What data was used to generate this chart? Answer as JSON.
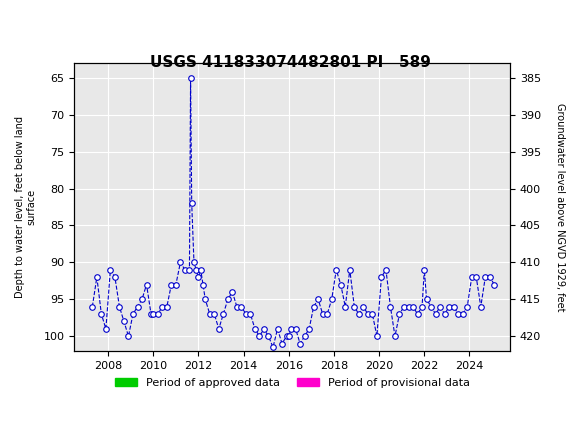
{
  "title": "USGS 411833074482801 PI   589",
  "ylabel_left": "Depth to water level, feet below land\nsurface",
  "ylabel_right": "Groundwater level above NGVD 1929, feet",
  "xlabel": "",
  "ylim_left": [
    63,
    102
  ],
  "ylim_right": [
    383,
    422
  ],
  "xlim": [
    2006.5,
    2025.8
  ],
  "xticks": [
    2008,
    2010,
    2012,
    2014,
    2016,
    2018,
    2020,
    2022,
    2024
  ],
  "yticks_left": [
    65,
    70,
    75,
    80,
    85,
    90,
    95,
    100
  ],
  "yticks_right": [
    420,
    415,
    410,
    405,
    400,
    395,
    390,
    385
  ],
  "header_color": "#1a6b3c",
  "line_color": "#0000cc",
  "marker_color": "#0000cc",
  "approved_color": "#00cc00",
  "provisional_color": "#ff00cc",
  "background_color": "#ffffff",
  "legend_approved": "Period of approved data",
  "legend_provisional": "Period of provisional data",
  "data_x": [
    2007.3,
    2007.5,
    2007.7,
    2007.9,
    2008.1,
    2008.3,
    2008.5,
    2008.7,
    2008.9,
    2009.1,
    2009.3,
    2009.5,
    2009.7,
    2009.9,
    2010.0,
    2010.2,
    2010.4,
    2010.6,
    2010.8,
    2011.0,
    2011.2,
    2011.4,
    2011.6,
    2011.65,
    2011.7,
    2011.8,
    2011.9,
    2012.0,
    2012.1,
    2012.2,
    2012.3,
    2012.5,
    2012.7,
    2012.9,
    2013.1,
    2013.3,
    2013.5,
    2013.7,
    2013.9,
    2014.1,
    2014.3,
    2014.5,
    2014.7,
    2014.9,
    2015.1,
    2015.3,
    2015.5,
    2015.7,
    2015.9,
    2016.0,
    2016.1,
    2016.3,
    2016.5,
    2016.7,
    2016.9,
    2017.1,
    2017.3,
    2017.5,
    2017.7,
    2017.9,
    2018.1,
    2018.3,
    2018.5,
    2018.7,
    2018.9,
    2019.1,
    2019.3,
    2019.5,
    2019.7,
    2019.9,
    2020.1,
    2020.3,
    2020.5,
    2020.7,
    2020.9,
    2021.1,
    2021.3,
    2021.5,
    2021.7,
    2021.9,
    2022.0,
    2022.1,
    2022.3,
    2022.5,
    2022.7,
    2022.9,
    2023.1,
    2023.3,
    2023.5,
    2023.7,
    2023.9,
    2024.1,
    2024.3,
    2024.5,
    2024.7,
    2024.9,
    2025.1
  ],
  "data_y": [
    96,
    92,
    97,
    99,
    91,
    92,
    96,
    98,
    100,
    97,
    96,
    95,
    93,
    97,
    97,
    97,
    96,
    96,
    93,
    93,
    90,
    91,
    91,
    65,
    82,
    90,
    91,
    92,
    91,
    93,
    95,
    97,
    97,
    99,
    97,
    95,
    94,
    96,
    96,
    97,
    97,
    99,
    100,
    99,
    100,
    101.5,
    99,
    101,
    100,
    100,
    99,
    99,
    101,
    100,
    99,
    96,
    95,
    97,
    97,
    95,
    91,
    93,
    96,
    91,
    96,
    97,
    96,
    97,
    97,
    100,
    92,
    91,
    96,
    100,
    97,
    96,
    96,
    96,
    97,
    96,
    91,
    95,
    96,
    97,
    96,
    97,
    96,
    96,
    97,
    97,
    96,
    92,
    92,
    96,
    92,
    92,
    93
  ],
  "approved_bar_start": 2006.7,
  "approved_bar_end": 2024.6,
  "provisional_bar_start": 2024.6,
  "provisional_bar_end": 2025.4,
  "bar_y": 102.5,
  "bar_height": 1.0
}
